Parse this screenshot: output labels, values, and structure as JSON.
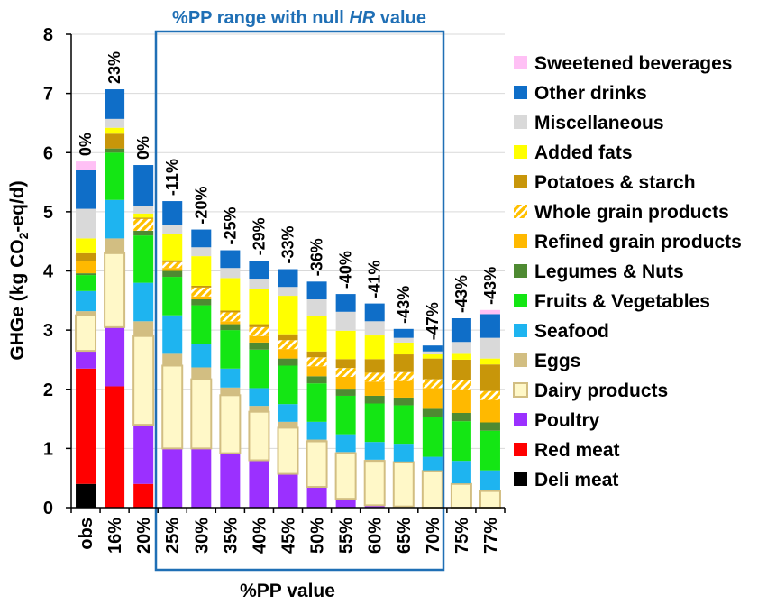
{
  "chart_data": {
    "type": "stacked-bar",
    "ylabel": "GHGe (kg CO2-eq/d)",
    "ylabel_main": "GHGe (kg CO",
    "ylabel_sub": "2",
    "ylabel_end": "-eq/d)",
    "xlabel": "%PP value",
    "ylim": [
      0,
      8
    ],
    "yticks": [
      "0",
      "1",
      "2",
      "3",
      "4",
      "5",
      "6",
      "7",
      "8"
    ],
    "grid": true,
    "legend_position": "right",
    "highlight": {
      "label_pre": "%PP range with null ",
      "label_italic": "HR",
      "label_post": " value",
      "from_category": "25%",
      "to_category": "70%",
      "color": "#1F6FB5"
    },
    "categories": [
      "obs",
      "16%",
      "20%",
      "25%",
      "30%",
      "35%",
      "40%",
      "45%",
      "50%",
      "55%",
      "60%",
      "65%",
      "70%",
      "75%",
      "77%"
    ],
    "bar_labels": [
      "0%",
      "23%",
      "0%",
      "-11%",
      "-20%",
      "-25%",
      "-29%",
      "-33%",
      "-36%",
      "-40%",
      "-41%",
      "-43%",
      "-47%",
      "-43%",
      "-43%"
    ],
    "series": [
      {
        "name": "Deli meat",
        "color": "#000000",
        "values": [
          0.4,
          0,
          0,
          0,
          0,
          0,
          0,
          0,
          0,
          0,
          0,
          0,
          0,
          0,
          0
        ]
      },
      {
        "name": "Red meat",
        "color": "#FF0000",
        "values": [
          1.95,
          2.05,
          0.4,
          0,
          0,
          0,
          0,
          0,
          0,
          0,
          0,
          0,
          0,
          0,
          0
        ]
      },
      {
        "name": "Poultry",
        "color": "#9B30FF",
        "values": [
          0.3,
          1.0,
          1.0,
          1.0,
          1.0,
          0.92,
          0.8,
          0.57,
          0.35,
          0.15,
          0.04,
          0.02,
          0,
          0,
          0
        ]
      },
      {
        "name": "Dairy products",
        "color": "#FFF8C8",
        "values": [
          0.6,
          1.25,
          1.5,
          1.4,
          1.17,
          0.98,
          0.82,
          0.78,
          0.77,
          0.77,
          0.75,
          0.75,
          0.62,
          0.4,
          0.28
        ]
      },
      {
        "name": "Eggs",
        "color": "#D2BE82",
        "values": [
          0.07,
          0.25,
          0.25,
          0.2,
          0.2,
          0.13,
          0.1,
          0.1,
          0.03,
          0.02,
          0.02,
          0.01,
          0.01,
          0.01,
          0.01
        ]
      },
      {
        "name": "Seafood",
        "color": "#1EB4F0",
        "values": [
          0.34,
          0.65,
          0.65,
          0.65,
          0.4,
          0.32,
          0.3,
          0.3,
          0.3,
          0.3,
          0.3,
          0.3,
          0.23,
          0.38,
          0.34
        ]
      },
      {
        "name": "Fruits & Vegetables",
        "color": "#14E614",
        "values": [
          0.27,
          0.8,
          0.8,
          0.65,
          0.65,
          0.65,
          0.65,
          0.65,
          0.65,
          0.65,
          0.65,
          0.65,
          0.67,
          0.67,
          0.67
        ]
      },
      {
        "name": "Legumes & Nuts",
        "color": "#4E8A32",
        "values": [
          0.03,
          0.07,
          0.08,
          0.1,
          0.1,
          0.1,
          0.12,
          0.12,
          0.12,
          0.12,
          0.13,
          0.13,
          0.14,
          0.14,
          0.14
        ]
      },
      {
        "name": "Refined grain products",
        "color": "#FFB900",
        "values": [
          0.2,
          0,
          0,
          0.05,
          0.05,
          0.05,
          0.11,
          0.16,
          0.17,
          0.2,
          0.24,
          0.28,
          0.35,
          0.4,
          0.38
        ]
      },
      {
        "name": "Whole grain products",
        "color": "#FFC000",
        "pattern": "hatch",
        "values": [
          0,
          0,
          0.2,
          0.1,
          0.15,
          0.15,
          0.15,
          0.15,
          0.15,
          0.15,
          0.15,
          0.15,
          0.15,
          0.15,
          0.15
        ]
      },
      {
        "name": "Potatoes & starch",
        "color": "#C8960A",
        "values": [
          0.14,
          0.25,
          0.02,
          0.03,
          0.03,
          0.03,
          0.05,
          0.1,
          0.1,
          0.15,
          0.23,
          0.3,
          0.35,
          0.35,
          0.45
        ]
      },
      {
        "name": "Added fats",
        "color": "#FFFF00",
        "values": [
          0.25,
          0.1,
          0.07,
          0.45,
          0.5,
          0.55,
          0.6,
          0.65,
          0.6,
          0.48,
          0.4,
          0.2,
          0.07,
          0.1,
          0.1
        ]
      },
      {
        "name": "Miscellaneous",
        "color": "#D9D9D9",
        "values": [
          0.5,
          0.15,
          0.12,
          0.15,
          0.15,
          0.17,
          0.17,
          0.15,
          0.28,
          0.32,
          0.24,
          0.08,
          0.05,
          0.2,
          0.35
        ]
      },
      {
        "name": "Other drinks",
        "color": "#0F6EC8",
        "values": [
          0.65,
          0.5,
          0.7,
          0.4,
          0.3,
          0.3,
          0.3,
          0.3,
          0.3,
          0.3,
          0.3,
          0.15,
          0.1,
          0.4,
          0.4
        ]
      },
      {
        "name": "Sweetened beverages",
        "color": "#FFC0F5",
        "values": [
          0.15,
          0,
          0,
          0,
          0,
          0,
          0,
          0,
          0,
          0,
          0,
          0,
          0,
          0,
          0.07
        ]
      }
    ]
  }
}
